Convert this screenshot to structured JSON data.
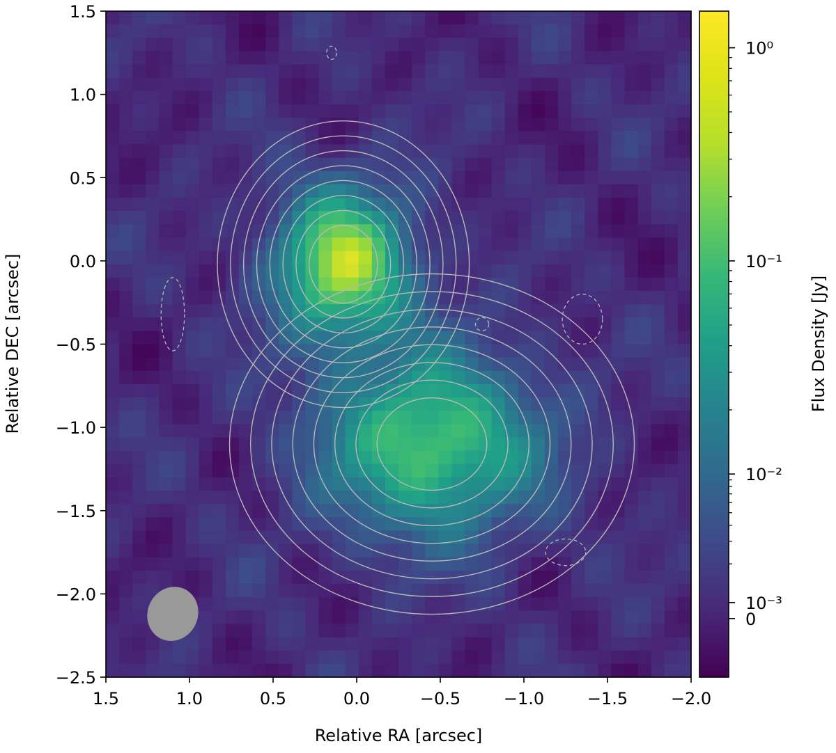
{
  "chart_data": {
    "type": "heatmap",
    "title": "",
    "xlabel": "Relative RA [arcsec]",
    "ylabel": "Relative DEC [arcsec]",
    "xlim": [
      1.5,
      -2.0
    ],
    "ylim": [
      -2.5,
      1.5
    ],
    "x_ticks": [
      {
        "value": 1.5,
        "label": "1.5"
      },
      {
        "value": 1.0,
        "label": "1.0"
      },
      {
        "value": 0.5,
        "label": "0.5"
      },
      {
        "value": 0.0,
        "label": "0.0"
      },
      {
        "value": -0.5,
        "label": "−0.5"
      },
      {
        "value": -1.0,
        "label": "−1.0"
      },
      {
        "value": -1.5,
        "label": "−1.5"
      },
      {
        "value": -2.0,
        "label": "−2.0"
      }
    ],
    "y_ticks": [
      {
        "value": 1.5,
        "label": "1.5"
      },
      {
        "value": 1.0,
        "label": "1.0"
      },
      {
        "value": 0.5,
        "label": "0.5"
      },
      {
        "value": 0.0,
        "label": "0.0"
      },
      {
        "value": -0.5,
        "label": "−0.5"
      },
      {
        "value": -1.0,
        "label": "−1.0"
      },
      {
        "value": -1.5,
        "label": "−1.5"
      },
      {
        "value": -2.0,
        "label": "−2.0"
      },
      {
        "value": -2.5,
        "label": "−2.5"
      }
    ],
    "colormap": "viridis",
    "colorbar": {
      "label": "Flux Density [Jy]",
      "scale": "symlog",
      "ticks": [
        {
          "label": "10⁰",
          "position": 0.055
        },
        {
          "label": "10⁻¹",
          "position": 0.375
        },
        {
          "label": "10⁻²",
          "position": 0.695
        },
        {
          "label": "10⁻³",
          "position": 0.888
        },
        {
          "label": "0",
          "position": 0.912
        }
      ]
    },
    "sources": [
      {
        "name": "",
        "ra": 0.08,
        "dec": -0.02,
        "sigma_ra": 0.28,
        "sigma_dec": 0.32,
        "peak": 0.75
      },
      {
        "name": "",
        "ra": -0.45,
        "dec": -1.1,
        "sigma_ra": 0.45,
        "sigma_dec": 0.38,
        "peak": 0.62
      }
    ],
    "contours": {
      "positive_color": "#b8b8b8",
      "negative_style": "dashed",
      "positive_levels": 8
    },
    "beam": {
      "ra": 1.1,
      "dec": -2.12,
      "major_arcsec": 0.33,
      "minor_arcsec": 0.3,
      "color": "#999999"
    },
    "colors": {
      "low": "#440154",
      "mid": "#21908c",
      "high": "#fde725"
    }
  }
}
